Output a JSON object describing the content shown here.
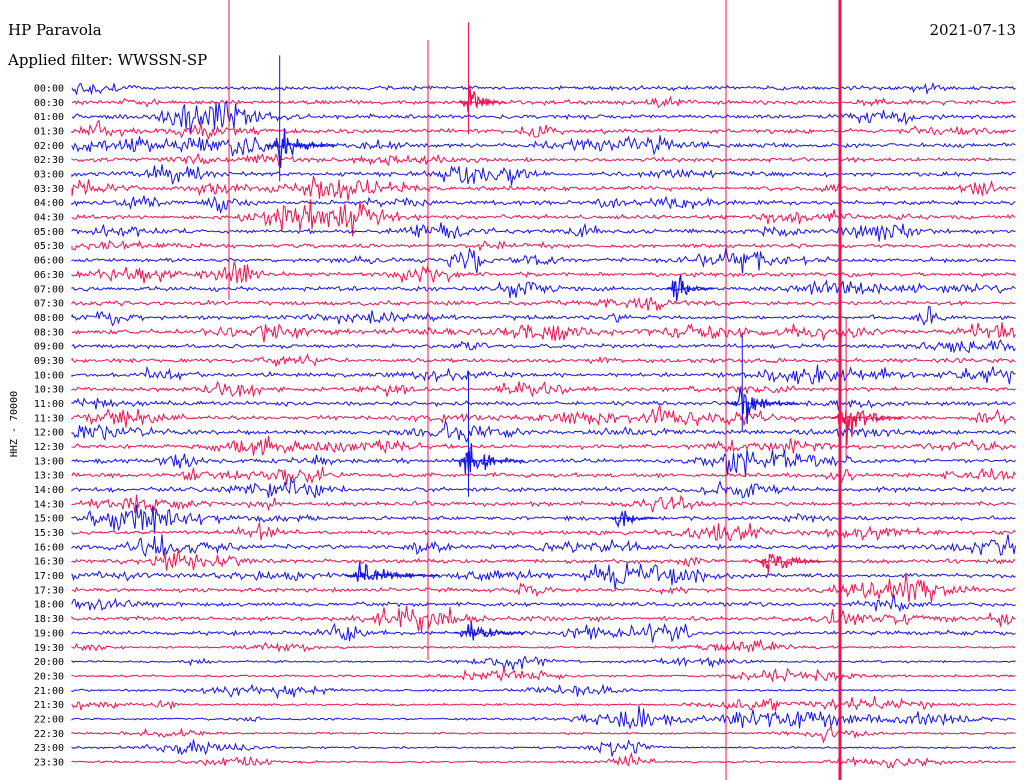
{
  "header": {
    "station": "HP Paravola",
    "filter": "Applied filter: WWSSN-SP",
    "date": "2021-07-13"
  },
  "chart_data": {
    "type": "line",
    "title": "HP Paravola",
    "subtitle": "Applied filter: WWSSN-SP",
    "date": "2021-07-13",
    "ylabel": "HHZ - 70000",
    "row_labels": [
      "00:00",
      "00:30",
      "01:00",
      "01:30",
      "02:00",
      "02:30",
      "03:00",
      "03:30",
      "04:00",
      "04:30",
      "05:00",
      "05:30",
      "06:00",
      "06:30",
      "07:00",
      "07:30",
      "08:00",
      "08:30",
      "09:00",
      "09:30",
      "10:00",
      "10:30",
      "11:00",
      "11:30",
      "12:00",
      "12:30",
      "13:00",
      "13:30",
      "14:00",
      "14:30",
      "15:00",
      "15:30",
      "16:00",
      "16:30",
      "17:00",
      "17:30",
      "18:00",
      "18:30",
      "19:00",
      "19:30",
      "20:00",
      "20:30",
      "21:00",
      "21:30",
      "22:00",
      "22:30",
      "23:00",
      "23:30"
    ],
    "series_colors": [
      "#1414e6",
      "#f0124c"
    ],
    "grid": false,
    "events": [
      {
        "row": 4,
        "x": 0.22,
        "amp": 9,
        "dur": 0.03,
        "big": 1
      },
      {
        "row": 1,
        "x": 0.42,
        "amp": 8,
        "dur": 0.02,
        "big": 1
      },
      {
        "row": 26,
        "x": 0.42,
        "amp": 9,
        "dur": 0.03,
        "big": 1
      },
      {
        "row": 23,
        "x": 0.82,
        "amp": 10,
        "dur": 0.03,
        "big": 1
      },
      {
        "row": 22,
        "x": 0.71,
        "amp": 7,
        "dur": 0.03,
        "big": 1
      },
      {
        "row": 14,
        "x": 0.64,
        "amp": 7,
        "dur": 0.02,
        "big": 0
      },
      {
        "row": 33,
        "x": 0.74,
        "amp": 6,
        "dur": 0.03,
        "big": 0
      },
      {
        "row": 34,
        "x": 0.31,
        "amp": 5,
        "dur": 0.04,
        "big": 0
      },
      {
        "row": 38,
        "x": 0.42,
        "amp": 5,
        "dur": 0.03,
        "big": 0
      },
      {
        "row": 30,
        "x": 0.58,
        "amp": 5,
        "dur": 0.02,
        "big": 0
      }
    ]
  }
}
